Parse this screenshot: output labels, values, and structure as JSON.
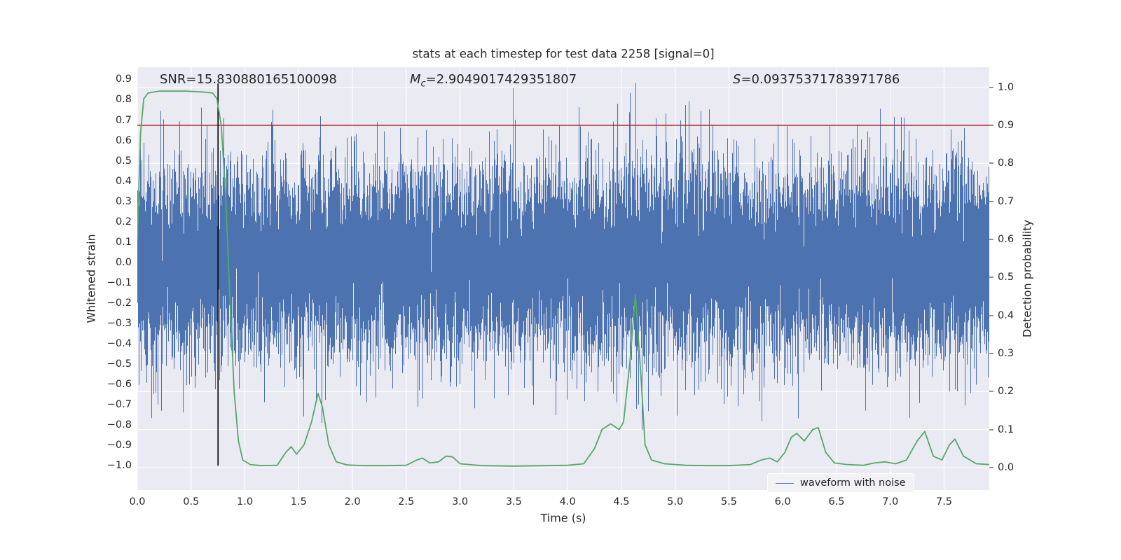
{
  "chart_data": {
    "type": "line",
    "title": "stats at each timestep for test data 2258 [signal=0]",
    "xlabel": "Time (s)",
    "ylabel_left": "Whitened strain",
    "ylabel_right": "Detection probability",
    "xlim": [
      0,
      7.92
    ],
    "ylim_left": [
      -1.12,
      0.96
    ],
    "ylim_right": [
      -0.059,
      1.053
    ],
    "x_ticks": [
      0.0,
      0.5,
      1.0,
      1.5,
      2.0,
      2.5,
      3.0,
      3.5,
      4.0,
      4.5,
      5.0,
      5.5,
      6.0,
      6.5,
      7.0,
      7.5
    ],
    "y_left_ticks": [
      0.9,
      0.8,
      0.7,
      0.6,
      0.5,
      0.4,
      0.3,
      0.2,
      0.1,
      0.0,
      -0.1,
      -0.2,
      -0.3,
      -0.4,
      -0.5,
      -0.6,
      -0.7,
      -0.8,
      -0.9,
      -1.0
    ],
    "y_right_ticks": [
      1.0,
      0.9,
      0.8,
      0.7,
      0.6,
      0.5,
      0.4,
      0.3,
      0.2,
      0.1,
      0.0
    ],
    "grid": true,
    "background": "#eaeaf2",
    "grid_color": "#ffffff",
    "annotations": {
      "snr": "SNR=15.830880165100098",
      "mc_prefix": "M",
      "mc_sub": "c",
      "mc_rest": "=2.9049017429351807",
      "s_prefix": "S",
      "s_rest": "=0.09375371783971786"
    },
    "legend": {
      "position": "lower right",
      "entries": [
        {
          "label": "waveform with noise",
          "color": "#4c72b0"
        }
      ]
    },
    "series": {
      "waveform": {
        "name": "waveform with noise",
        "color": "#4c72b0",
        "kind": "gaussian-noise",
        "mean": 0,
        "sigma": 0.225,
        "samples_per_column": 14,
        "seed": 2258
      },
      "detection_probability": {
        "color": "#55a868",
        "axis": "right",
        "points": [
          [
            0.0,
            0.6
          ],
          [
            0.03,
            0.88
          ],
          [
            0.06,
            0.97
          ],
          [
            0.1,
            0.985
          ],
          [
            0.2,
            0.99
          ],
          [
            0.3,
            0.99
          ],
          [
            0.45,
            0.99
          ],
          [
            0.6,
            0.988
          ],
          [
            0.7,
            0.985
          ],
          [
            0.74,
            0.97
          ],
          [
            0.78,
            0.9
          ],
          [
            0.82,
            0.72
          ],
          [
            0.86,
            0.45
          ],
          [
            0.9,
            0.2
          ],
          [
            0.94,
            0.07
          ],
          [
            0.98,
            0.02
          ],
          [
            1.05,
            0.008
          ],
          [
            1.15,
            0.005
          ],
          [
            1.3,
            0.006
          ],
          [
            1.38,
            0.04
          ],
          [
            1.43,
            0.055
          ],
          [
            1.48,
            0.035
          ],
          [
            1.55,
            0.06
          ],
          [
            1.62,
            0.12
          ],
          [
            1.68,
            0.195
          ],
          [
            1.72,
            0.16
          ],
          [
            1.78,
            0.06
          ],
          [
            1.85,
            0.015
          ],
          [
            1.95,
            0.007
          ],
          [
            2.1,
            0.005
          ],
          [
            2.3,
            0.005
          ],
          [
            2.5,
            0.006
          ],
          [
            2.6,
            0.02
          ],
          [
            2.65,
            0.025
          ],
          [
            2.72,
            0.012
          ],
          [
            2.8,
            0.015
          ],
          [
            2.87,
            0.03
          ],
          [
            2.93,
            0.028
          ],
          [
            3.0,
            0.01
          ],
          [
            3.2,
            0.005
          ],
          [
            3.5,
            0.004
          ],
          [
            3.8,
            0.005
          ],
          [
            4.0,
            0.006
          ],
          [
            4.15,
            0.01
          ],
          [
            4.25,
            0.05
          ],
          [
            4.32,
            0.1
          ],
          [
            4.4,
            0.115
          ],
          [
            4.48,
            0.1
          ],
          [
            4.52,
            0.12
          ],
          [
            4.58,
            0.28
          ],
          [
            4.63,
            0.455
          ],
          [
            4.68,
            0.25
          ],
          [
            4.72,
            0.06
          ],
          [
            4.78,
            0.02
          ],
          [
            4.9,
            0.01
          ],
          [
            5.1,
            0.006
          ],
          [
            5.3,
            0.005
          ],
          [
            5.5,
            0.005
          ],
          [
            5.7,
            0.008
          ],
          [
            5.8,
            0.02
          ],
          [
            5.88,
            0.025
          ],
          [
            5.95,
            0.015
          ],
          [
            6.02,
            0.04
          ],
          [
            6.08,
            0.08
          ],
          [
            6.13,
            0.09
          ],
          [
            6.2,
            0.07
          ],
          [
            6.28,
            0.1
          ],
          [
            6.33,
            0.105
          ],
          [
            6.4,
            0.04
          ],
          [
            6.48,
            0.012
          ],
          [
            6.6,
            0.008
          ],
          [
            6.75,
            0.006
          ],
          [
            6.85,
            0.012
          ],
          [
            6.95,
            0.015
          ],
          [
            7.05,
            0.01
          ],
          [
            7.15,
            0.02
          ],
          [
            7.25,
            0.07
          ],
          [
            7.32,
            0.095
          ],
          [
            7.4,
            0.03
          ],
          [
            7.48,
            0.02
          ],
          [
            7.55,
            0.06
          ],
          [
            7.6,
            0.075
          ],
          [
            7.68,
            0.03
          ],
          [
            7.8,
            0.01
          ],
          [
            7.92,
            0.008
          ]
        ]
      },
      "threshold_line": {
        "color": "#b22222",
        "axis": "right",
        "value": 0.9
      },
      "event_marker": {
        "color": "#000000",
        "time": 0.75,
        "strain_range": [
          -1.0,
          0.88
        ]
      }
    }
  }
}
